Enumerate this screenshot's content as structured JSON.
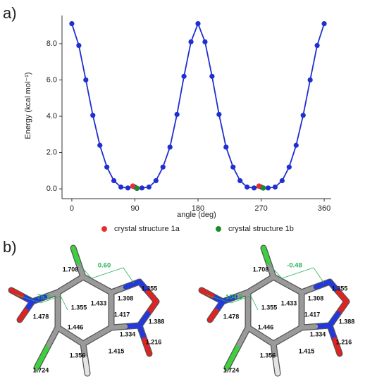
{
  "chart_data": {
    "type": "line",
    "panel_label": "a)",
    "xlabel": "angle (deg)",
    "ylabel": "Energy (kcal mol⁻¹)",
    "x": [
      0,
      10,
      20,
      30,
      40,
      50,
      60,
      70,
      80,
      90,
      100,
      110,
      120,
      130,
      140,
      150,
      160,
      170,
      180,
      190,
      200,
      210,
      220,
      230,
      240,
      250,
      260,
      270,
      280,
      290,
      300,
      310,
      320,
      330,
      340,
      350,
      360
    ],
    "series": [
      {
        "color": "#1f2fd0",
        "values": [
          9.1,
          7.9,
          6.0,
          4.05,
          2.4,
          1.2,
          0.45,
          0.1,
          0.05,
          0.1,
          0.05,
          0.1,
          0.45,
          1.2,
          2.3,
          4.1,
          6.2,
          8.1,
          9.1,
          8.1,
          6.2,
          4.1,
          2.3,
          1.2,
          0.45,
          0.1,
          0.05,
          0.1,
          0.05,
          0.1,
          0.45,
          1.2,
          2.4,
          4.05,
          6.0,
          7.9,
          9.1
        ]
      }
    ],
    "markers": [
      {
        "name": "crystal structure 1a",
        "color": "#e8302a",
        "x": [
          87,
          267
        ],
        "values": [
          0.15,
          0.15
        ]
      },
      {
        "name": "crystal structure 1b",
        "color": "#1e8a2a",
        "x": [
          93,
          273
        ],
        "values": [
          0.03,
          0.05
        ]
      }
    ],
    "xlim": [
      -14,
      370
    ],
    "ylim": [
      -0.54,
      9.55
    ],
    "xticks": [
      0,
      90,
      180,
      270,
      360
    ],
    "yticks": [
      {
        "value": 0,
        "label": "0.0"
      },
      {
        "value": 2,
        "label": "2.0"
      },
      {
        "value": 4,
        "label": "4.0"
      },
      {
        "value": 6,
        "label": "6.0"
      },
      {
        "value": 8,
        "label": "8.0"
      }
    ]
  },
  "panel_b": {
    "label": "b)",
    "molecules": [
      {
        "labels": [
          "1.708",
          "0.60",
          "75.2",
          "1.355",
          "1.433",
          "1.308",
          "1.355",
          "1.478",
          "1.417",
          "1.388",
          "1.446",
          "1.334",
          "1.216",
          "1.724",
          "1.356",
          "1.415"
        ]
      },
      {
        "labels": [
          "1.708",
          "-0.48",
          "104.8",
          "1.355",
          "1.433",
          "1.308",
          "1.355",
          "1.478",
          "1.417",
          "1.388",
          "1.446",
          "1.334",
          "1.216",
          "1.724",
          "1.356",
          "1.415"
        ]
      }
    ]
  }
}
